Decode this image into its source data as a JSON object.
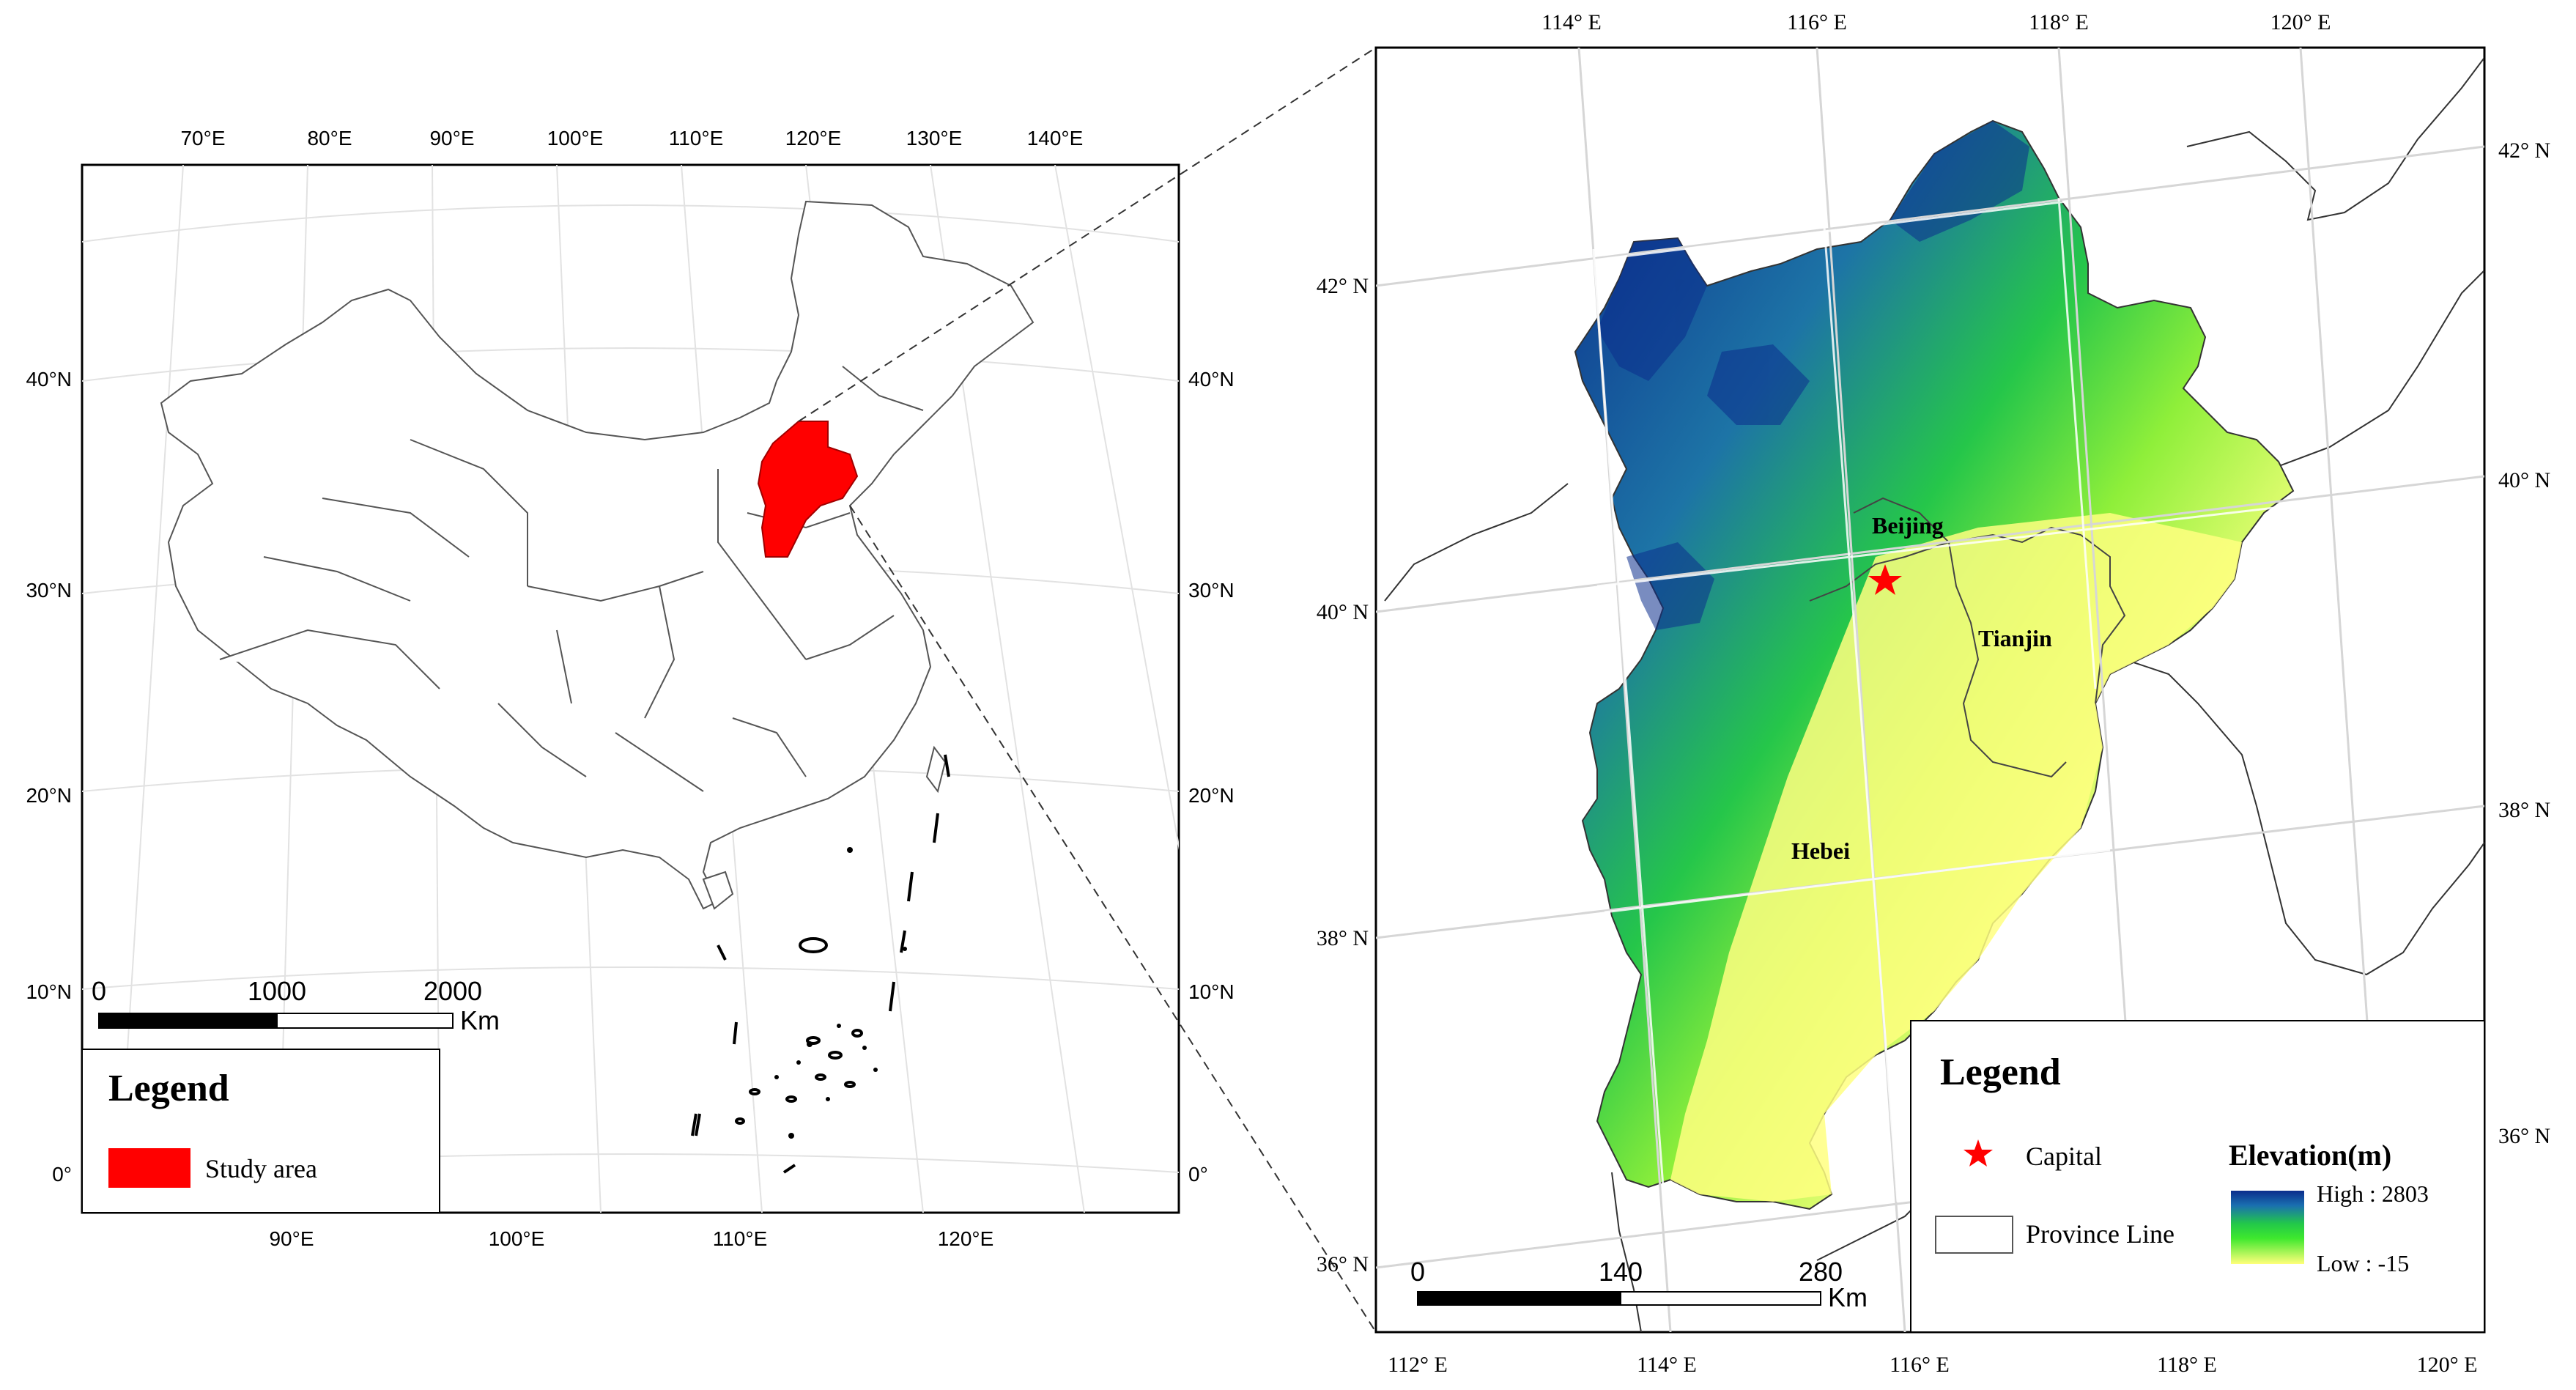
{
  "left_map": {
    "top_lon_labels": [
      "70°E",
      "80°E",
      "90°E",
      "100°E",
      "110°E",
      "120°E",
      "130°E",
      "140°E"
    ],
    "bottom_lon_labels": [
      "90°E",
      "100°E",
      "110°E",
      "120°E"
    ],
    "left_lat_labels": [
      "40°N",
      "30°N",
      "20°N",
      "10°N",
      "0°"
    ],
    "right_lat_labels": [
      "40°N",
      "30°N",
      "20°N",
      "10°N",
      "0°"
    ],
    "scale": {
      "zero": "0",
      "mid": "1000",
      "max": "2000",
      "unit": "Km"
    },
    "legend": {
      "title": "Legend",
      "study_area_label": "Study area",
      "study_area_color": "#ff0000"
    }
  },
  "right_map": {
    "top_lon_labels": [
      "114° E",
      "116° E",
      "118° E",
      "120° E"
    ],
    "bottom_lon_labels": [
      "112° E",
      "114° E",
      "116° E",
      "118° E",
      "120° E"
    ],
    "left_lat_labels": [
      "42° N",
      "40° N",
      "38° N",
      "36° N"
    ],
    "right_lat_labels": [
      "42° N",
      "40° N",
      "38° N",
      "36° N"
    ],
    "places": {
      "beijing": "Beijing",
      "tianjin": "Tianjin",
      "hebei": "Hebei"
    },
    "scale": {
      "zero": "0",
      "mid": "140",
      "max": "280",
      "unit": "Km"
    },
    "legend": {
      "title": "Legend",
      "capital_label": "Capital",
      "province_label": "Province Line",
      "elevation_title": "Elevation(m)",
      "high_label": "High : 2803",
      "low_label": "Low : -15",
      "capital_color": "#ff0000",
      "high_color": "#0b2d8c",
      "mid_color": "#2ee62e",
      "low_color": "#ffff7a"
    }
  }
}
